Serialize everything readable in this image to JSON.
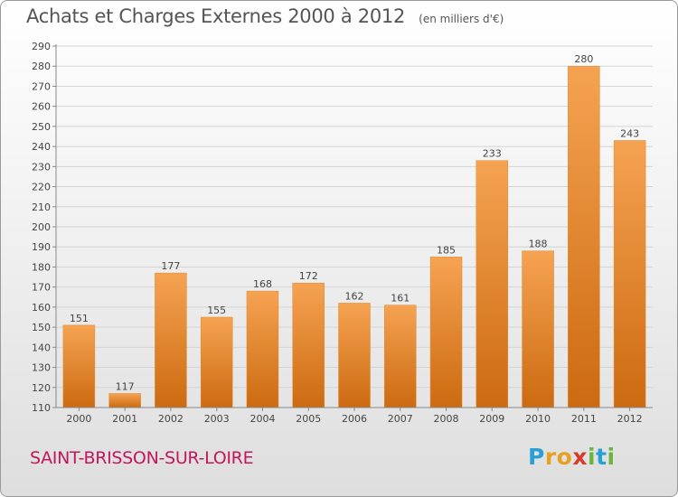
{
  "title": "Achats et Charges Externes 2000 à 2012",
  "unit": "(en milliers d'€)",
  "commune": "SAINT-BRISSON-SUR-LOIRE",
  "logo": {
    "text": "Proxiti",
    "letters": [
      {
        "ch": "P",
        "color": "#2a9fd6"
      },
      {
        "ch": "r",
        "color": "#e8a020"
      },
      {
        "ch": "o",
        "color": "#e8a020"
      },
      {
        "ch": "x",
        "color": "#d63a2a"
      },
      {
        "ch": "i",
        "color": "#6cb33f"
      },
      {
        "ch": "t",
        "color": "#2a9fd6"
      },
      {
        "ch": "i",
        "color": "#6cb33f"
      }
    ]
  },
  "colors": {
    "bar_top": "#f5a352",
    "bar_bottom": "#cc6a10",
    "grid": "#d4d4d4",
    "axis": "#888888",
    "text": "#444444"
  },
  "chart_data": {
    "type": "bar",
    "categories": [
      "2000",
      "2001",
      "2002",
      "2003",
      "2004",
      "2005",
      "2006",
      "2007",
      "2008",
      "2009",
      "2010",
      "2011",
      "2012"
    ],
    "values": [
      151,
      117,
      177,
      155,
      168,
      172,
      162,
      161,
      185,
      233,
      188,
      280,
      243
    ],
    "ylim": [
      110,
      290
    ],
    "yticks": [
      110,
      120,
      130,
      140,
      150,
      160,
      170,
      180,
      190,
      200,
      210,
      220,
      230,
      240,
      250,
      260,
      270,
      280,
      290
    ],
    "grid": true,
    "data_labels": true
  }
}
